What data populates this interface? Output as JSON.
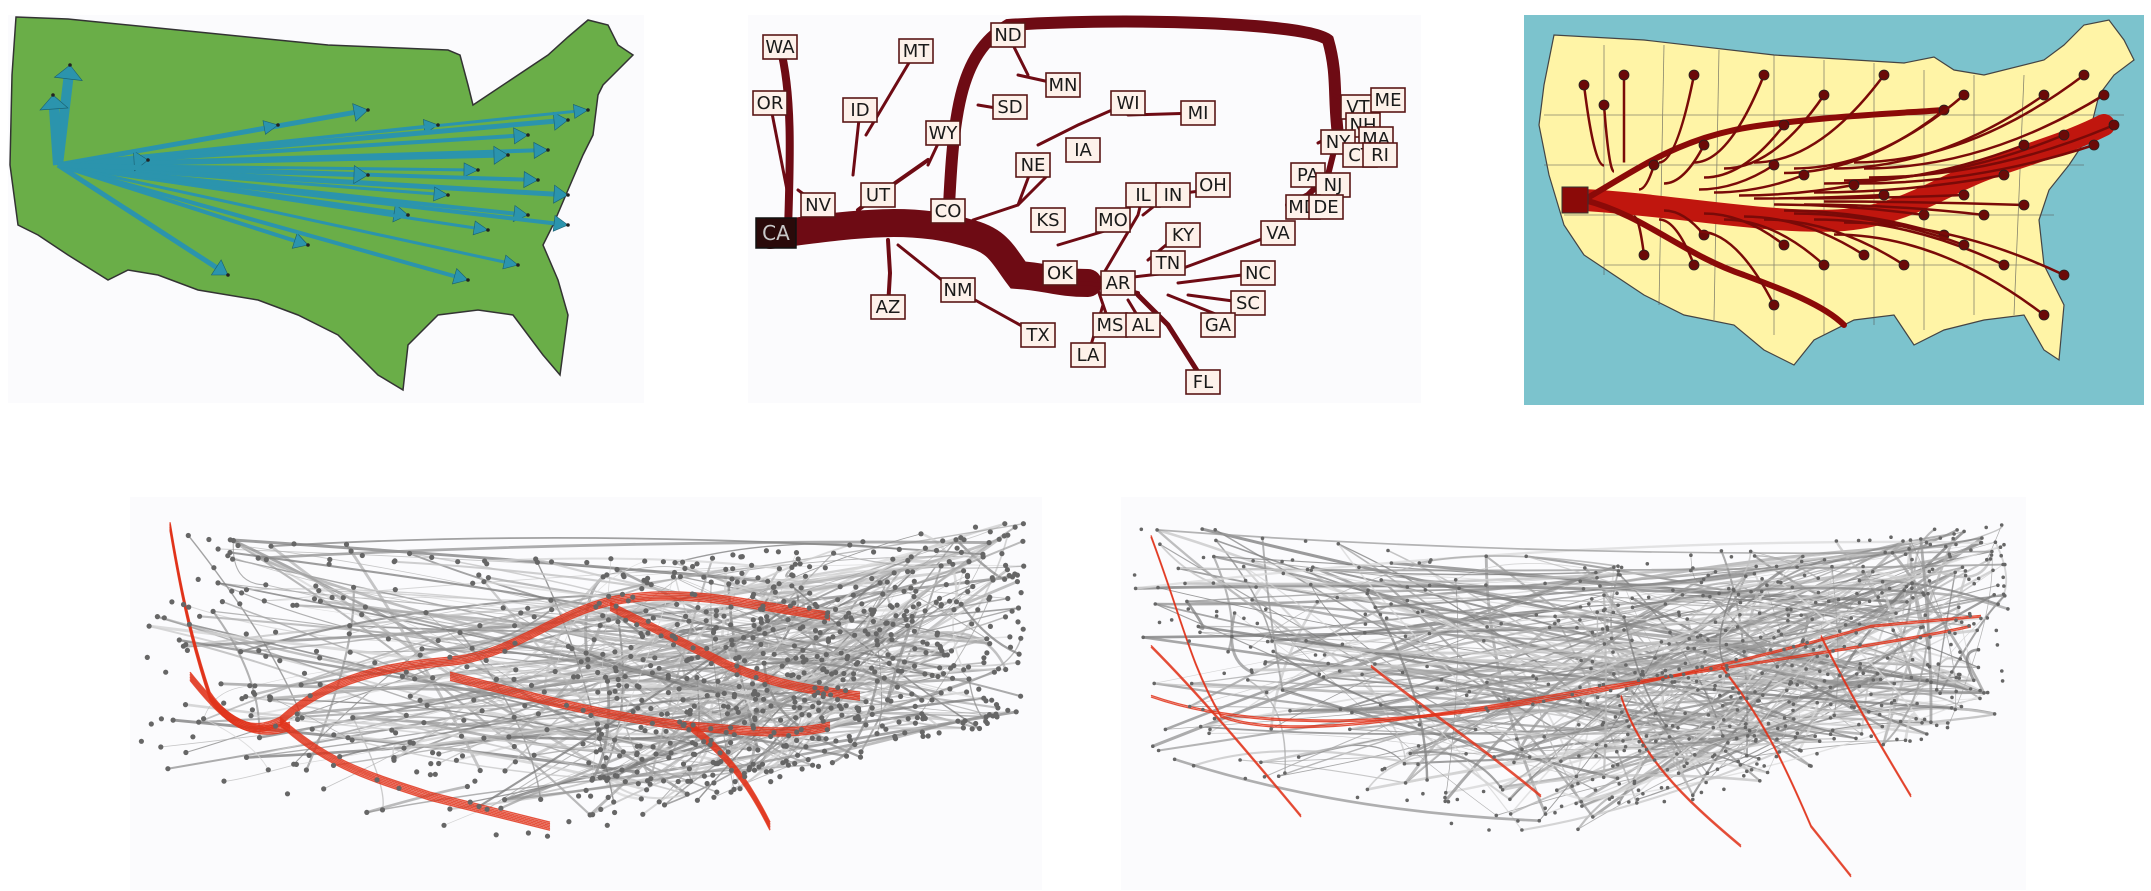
{
  "figure": {
    "panels": [
      {
        "id": "straight-arrow-flow-map",
        "source": "CA"
      },
      {
        "id": "labeled-flow-tree",
        "source": "CA",
        "labels": [
          "WA",
          "MT",
          "ND",
          "OR",
          "ID",
          "MN",
          "SD",
          "WI",
          "MI",
          "WY",
          "VT",
          "ME",
          "NH",
          "NY",
          "MA",
          "CT",
          "RI",
          "IA",
          "NE",
          "PA",
          "NJ",
          "UT",
          "IL",
          "IN",
          "OH",
          "NV",
          "CO",
          "MD",
          "DE",
          "KS",
          "MO",
          "KY",
          "CA",
          "VA",
          "TN",
          "NC",
          "OK",
          "AR",
          "SC",
          "AZ",
          "NM",
          "MS",
          "AL",
          "GA",
          "TX",
          "LA",
          "FL"
        ]
      },
      {
        "id": "smooth-flow-map",
        "source": "CA"
      },
      {
        "id": "edge-bundled-network-a"
      },
      {
        "id": "edge-bundled-network-b"
      }
    ]
  },
  "colors": {
    "green_land": "#6aae48",
    "teal_arrow": "#2b94ad",
    "dark_red_flow": "#6e0b14",
    "red_flow": "#c0160e",
    "yellow_land": "#fff4a6",
    "sea": "#7cc3cd",
    "highlight_edge": "#e0331a",
    "gray_edge": "#9c9c9c",
    "node_gray": "#666666"
  }
}
